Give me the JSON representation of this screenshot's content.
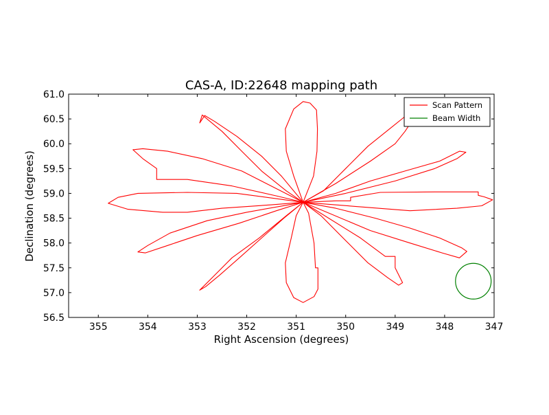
{
  "chart_data": {
    "type": "line",
    "title": "CAS-A, ID:22648 mapping path",
    "xlabel": "Right Ascension (degrees)",
    "ylabel": "Declination (degrees)",
    "xlim": [
      355.6,
      347.0
    ],
    "ylim": [
      56.5,
      61.0
    ],
    "x_ticks": [
      355,
      354,
      353,
      352,
      351,
      350,
      349,
      348,
      347
    ],
    "x_tick_labels": [
      "355",
      "354",
      "353",
      "352",
      "351",
      "350",
      "349",
      "348",
      "347"
    ],
    "y_ticks": [
      56.5,
      57.0,
      57.5,
      58.0,
      58.5,
      59.0,
      59.5,
      60.0,
      60.5,
      61.0
    ],
    "y_tick_labels": [
      "56.5",
      "57.0",
      "57.5",
      "58.0",
      "58.5",
      "59.0",
      "59.5",
      "60.0",
      "60.5",
      "61.0"
    ],
    "grid": false,
    "legend": {
      "position": "top-right",
      "entries": [
        {
          "label": "Scan Pattern",
          "color": "#ff0000"
        },
        {
          "label": "Beam Width",
          "color": "#008000"
        }
      ]
    },
    "center": {
      "x": 350.86,
      "y": 58.82
    },
    "series": [
      {
        "name": "Scan Pattern",
        "color": "#ff0000",
        "style": "line",
        "petals": [
          [
            [
              350.86,
              58.82
            ],
            [
              351.05,
              59.35
            ],
            [
              351.2,
              59.85
            ],
            [
              351.22,
              60.3
            ],
            [
              351.05,
              60.7
            ],
            [
              350.86,
              60.85
            ],
            [
              350.72,
              60.82
            ],
            [
              350.59,
              60.68
            ],
            [
              350.57,
              60.3
            ],
            [
              350.58,
              59.85
            ],
            [
              350.65,
              59.35
            ],
            [
              350.86,
              58.82
            ]
          ],
          [
            [
              350.86,
              58.82
            ],
            [
              350.45,
              59.05
            ],
            [
              350.0,
              59.5
            ],
            [
              349.55,
              59.95
            ],
            [
              349.05,
              60.35
            ],
            [
              348.8,
              60.55
            ],
            [
              348.7,
              60.4
            ],
            [
              348.8,
              60.25
            ],
            [
              349.0,
              60.0
            ],
            [
              349.5,
              59.65
            ],
            [
              350.2,
              59.2
            ],
            [
              350.86,
              58.82
            ]
          ],
          [
            [
              350.86,
              58.82
            ],
            [
              350.2,
              59.0
            ],
            [
              349.5,
              59.25
            ],
            [
              348.8,
              59.45
            ],
            [
              348.1,
              59.65
            ],
            [
              347.7,
              59.85
            ],
            [
              347.57,
              59.83
            ],
            [
              347.75,
              59.7
            ],
            [
              348.2,
              59.5
            ],
            [
              349.0,
              59.25
            ],
            [
              350.0,
              59.0
            ],
            [
              350.86,
              58.82
            ]
          ],
          [
            [
              350.86,
              58.82
            ],
            [
              350.2,
              58.85
            ],
            [
              349.9,
              58.85
            ],
            [
              349.9,
              58.92
            ],
            [
              349.3,
              59.02
            ],
            [
              348.2,
              59.03
            ],
            [
              347.32,
              59.03
            ],
            [
              347.32,
              58.96
            ],
            [
              347.2,
              58.93
            ],
            [
              347.03,
              58.87
            ],
            [
              347.25,
              58.75
            ],
            [
              347.75,
              58.7
            ],
            [
              348.7,
              58.65
            ],
            [
              350.86,
              58.82
            ]
          ],
          [
            [
              350.86,
              58.82
            ],
            [
              350.2,
              58.7
            ],
            [
              349.4,
              58.5
            ],
            [
              348.7,
              58.3
            ],
            [
              348.1,
              58.1
            ],
            [
              347.65,
              57.9
            ],
            [
              347.55,
              57.83
            ],
            [
              347.7,
              57.7
            ],
            [
              348.05,
              57.8
            ],
            [
              348.7,
              58.0
            ],
            [
              349.5,
              58.25
            ],
            [
              350.86,
              58.82
            ]
          ],
          [
            [
              350.86,
              58.82
            ],
            [
              350.5,
              58.55
            ],
            [
              350.0,
              58.05
            ],
            [
              349.55,
              57.6
            ],
            [
              349.15,
              57.3
            ],
            [
              348.93,
              57.15
            ],
            [
              348.85,
              57.2
            ],
            [
              348.95,
              57.4
            ],
            [
              349.0,
              57.5
            ],
            [
              349.0,
              57.73
            ],
            [
              349.2,
              57.73
            ],
            [
              349.7,
              58.1
            ],
            [
              350.86,
              58.82
            ]
          ],
          [
            [
              350.86,
              58.82
            ],
            [
              350.75,
              58.6
            ],
            [
              350.64,
              58.0
            ],
            [
              350.61,
              57.5
            ],
            [
              350.56,
              57.5
            ],
            [
              350.56,
              57.07
            ],
            [
              350.64,
              56.92
            ],
            [
              350.86,
              56.8
            ],
            [
              351.05,
              56.9
            ],
            [
              351.2,
              57.2
            ],
            [
              351.22,
              57.6
            ],
            [
              351.1,
              58.1
            ],
            [
              351.0,
              58.55
            ],
            [
              350.86,
              58.82
            ]
          ],
          [
            [
              350.86,
              58.82
            ],
            [
              351.2,
              58.55
            ],
            [
              351.75,
              58.1
            ],
            [
              352.3,
              57.7
            ],
            [
              352.65,
              57.35
            ],
            [
              352.95,
              57.05
            ],
            [
              352.83,
              57.12
            ],
            [
              352.55,
              57.35
            ],
            [
              352.15,
              57.7
            ],
            [
              351.7,
              58.1
            ],
            [
              351.25,
              58.5
            ],
            [
              350.86,
              58.82
            ]
          ],
          [
            [
              350.86,
              58.82
            ],
            [
              351.4,
              58.65
            ],
            [
              352.15,
              58.4
            ],
            [
              353.0,
              58.15
            ],
            [
              353.6,
              57.95
            ],
            [
              354.05,
              57.8
            ],
            [
              354.2,
              57.82
            ],
            [
              354.0,
              57.95
            ],
            [
              353.55,
              58.2
            ],
            [
              352.8,
              58.45
            ],
            [
              352.0,
              58.62
            ],
            [
              350.86,
              58.82
            ]
          ],
          [
            [
              350.86,
              58.82
            ],
            [
              351.5,
              58.77
            ],
            [
              352.5,
              58.7
            ],
            [
              353.2,
              58.62
            ],
            [
              353.7,
              58.62
            ],
            [
              354.4,
              58.68
            ],
            [
              354.8,
              58.8
            ],
            [
              354.6,
              58.92
            ],
            [
              354.2,
              59.0
            ],
            [
              353.2,
              59.02
            ],
            [
              352.2,
              59.0
            ],
            [
              350.86,
              58.82
            ]
          ],
          [
            [
              350.86,
              58.82
            ],
            [
              351.4,
              58.95
            ],
            [
              352.3,
              59.15
            ],
            [
              353.2,
              59.28
            ],
            [
              353.82,
              59.28
            ],
            [
              353.82,
              59.5
            ],
            [
              354.1,
              59.7
            ],
            [
              354.3,
              59.88
            ],
            [
              354.1,
              59.9
            ],
            [
              353.6,
              59.85
            ],
            [
              352.9,
              59.7
            ],
            [
              352.1,
              59.45
            ],
            [
              350.86,
              58.82
            ]
          ],
          [
            [
              350.86,
              58.82
            ],
            [
              351.2,
              59.05
            ],
            [
              351.7,
              59.45
            ],
            [
              352.1,
              59.85
            ],
            [
              352.5,
              60.25
            ],
            [
              352.9,
              60.58
            ],
            [
              352.95,
              60.42
            ],
            [
              352.85,
              60.57
            ],
            [
              352.65,
              60.45
            ],
            [
              352.2,
              60.15
            ],
            [
              351.7,
              59.75
            ],
            [
              351.3,
              59.35
            ],
            [
              350.86,
              58.82
            ]
          ]
        ]
      },
      {
        "name": "Beam Width",
        "color": "#008000",
        "style": "circle",
        "center": {
          "x": 347.42,
          "y": 57.23
        },
        "radius": 0.36
      }
    ]
  }
}
